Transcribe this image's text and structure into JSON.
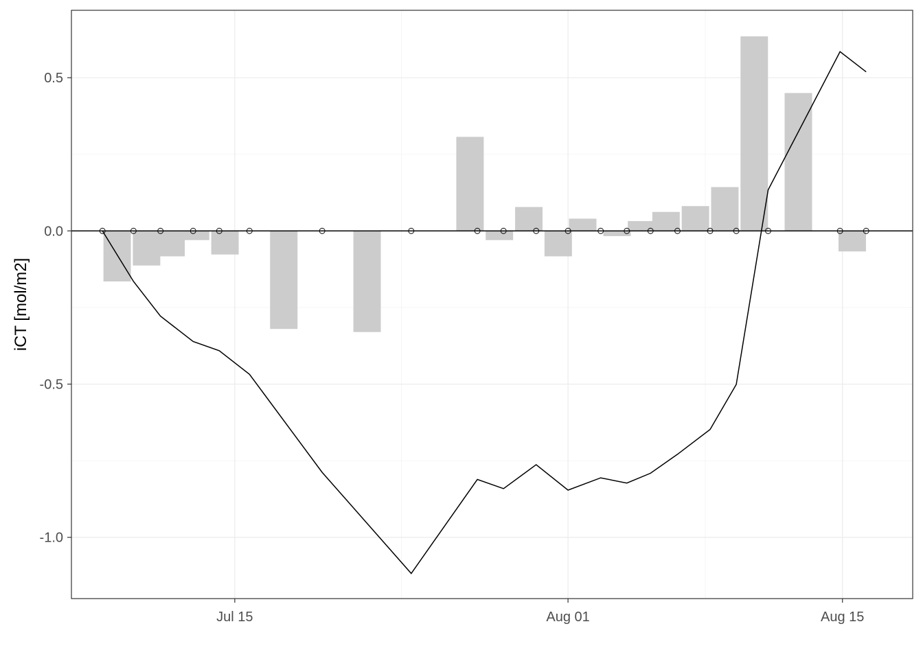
{
  "chart_data": {
    "type": "bar+line",
    "title": "",
    "xlabel": "",
    "ylabel": "iCT [mol/m2]",
    "grid": true,
    "legend": "none",
    "x_axis": {
      "type": "date",
      "ticks": [
        "2023-07-15",
        "2023-08-01",
        "2023-08-15"
      ],
      "tick_labels": [
        "Jul 15",
        "Aug 01",
        "Aug 15"
      ],
      "range": [
        "2023-07-06T16:00",
        "2023-08-18T14:00"
      ]
    },
    "y_axis": {
      "ticks": [
        0.5,
        0.0,
        -0.5,
        -1.0
      ],
      "tick_labels": [
        "0.5",
        "0.0",
        "-0.5",
        "-1.0"
      ],
      "range": [
        -1.2,
        0.72
      ]
    },
    "bars": {
      "name": "",
      "color": "#cccccc",
      "points": [
        {
          "x": "2023-07-09",
          "y": -0.165
        },
        {
          "x": "2023-07-10T12:00",
          "y": -0.113
        },
        {
          "x": "2023-07-11T18:00",
          "y": -0.083
        },
        {
          "x": "2023-07-13",
          "y": -0.03
        },
        {
          "x": "2023-07-14T12:00",
          "y": -0.077
        },
        {
          "x": "2023-07-17T12:00",
          "y": -0.32
        },
        {
          "x": "2023-07-21T18:00",
          "y": -0.33
        },
        {
          "x": "2023-07-27",
          "y": 0.307
        },
        {
          "x": "2023-07-28T12:00",
          "y": -0.03
        },
        {
          "x": "2023-07-30",
          "y": 0.078
        },
        {
          "x": "2023-07-31T12:00",
          "y": -0.083
        },
        {
          "x": "2023-08-01T18:00",
          "y": 0.04
        },
        {
          "x": "2023-08-03T12:00",
          "y": -0.017
        },
        {
          "x": "2023-08-04T18:00",
          "y": 0.032
        },
        {
          "x": "2023-08-06",
          "y": 0.062
        },
        {
          "x": "2023-08-07T12:00",
          "y": 0.081
        },
        {
          "x": "2023-08-09",
          "y": 0.143
        },
        {
          "x": "2023-08-10T12:00",
          "y": 0.635
        },
        {
          "x": "2023-08-12T18:00",
          "y": 0.45
        },
        {
          "x": "2023-08-15T12:00",
          "y": -0.067
        }
      ]
    },
    "line": {
      "name": "",
      "color": "#000000",
      "points": [
        {
          "x": "2023-07-08T06:00",
          "y": 0.0
        },
        {
          "x": "2023-07-09T20:00",
          "y": -0.165
        },
        {
          "x": "2023-07-11T05:00",
          "y": -0.278
        },
        {
          "x": "2023-07-12T21:00",
          "y": -0.361
        },
        {
          "x": "2023-07-14T05:00",
          "y": -0.391
        },
        {
          "x": "2023-07-15T18:00",
          "y": -0.468
        },
        {
          "x": "2023-07-19T11:00",
          "y": -0.788
        },
        {
          "x": "2023-07-24",
          "y": -1.118
        },
        {
          "x": "2023-07-27T09:00",
          "y": -0.811
        },
        {
          "x": "2023-07-28T17:00",
          "y": -0.841
        },
        {
          "x": "2023-07-30T09:00",
          "y": -0.763
        },
        {
          "x": "2023-08-01",
          "y": -0.846
        },
        {
          "x": "2023-08-02T16:00",
          "y": -0.806
        },
        {
          "x": "2023-08-04",
          "y": -0.823
        },
        {
          "x": "2023-08-05T05:00",
          "y": -0.791
        },
        {
          "x": "2023-08-06T14:00",
          "y": -0.729
        },
        {
          "x": "2023-08-08T06:00",
          "y": -0.648
        },
        {
          "x": "2023-08-09T14:00",
          "y": -0.501
        },
        {
          "x": "2023-08-11T05:00",
          "y": 0.134
        },
        {
          "x": "2023-08-14T21:00",
          "y": 0.585
        },
        {
          "x": "2023-08-16T05:00",
          "y": 0.519
        }
      ]
    },
    "points": {
      "name": "",
      "marker": "open-circle",
      "y": 0.0,
      "x": [
        "2023-07-08T06:00",
        "2023-07-09T20:00",
        "2023-07-11T05:00",
        "2023-07-12T21:00",
        "2023-07-14T05:00",
        "2023-07-15T18:00",
        "2023-07-19T11:00",
        "2023-07-24",
        "2023-07-27T09:00",
        "2023-07-28T17:00",
        "2023-07-30T09:00",
        "2023-08-01",
        "2023-08-02T16:00",
        "2023-08-04",
        "2023-08-05T05:00",
        "2023-08-06T14:00",
        "2023-08-08T06:00",
        "2023-08-09T14:00",
        "2023-08-11T05:00",
        "2023-08-14T21:00",
        "2023-08-16T05:00"
      ]
    },
    "reference_line": {
      "y": 0.0,
      "color": "#000000"
    }
  }
}
